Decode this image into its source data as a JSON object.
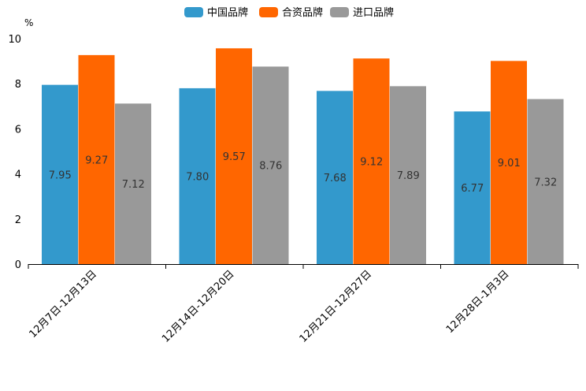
{
  "chart_data": {
    "type": "bar",
    "title": "",
    "xlabel": "",
    "ylabel": "%",
    "ylim": [
      0,
      10
    ],
    "yticks": [
      0,
      2,
      4,
      6,
      8,
      10
    ],
    "grid": false,
    "legend_position": "top-center",
    "categories": [
      "12月7日-12月13日",
      "12月14日-12月20日",
      "12月21日-12月27日",
      "12月28日-1月3日"
    ],
    "series": [
      {
        "name": "中国品牌",
        "color": "#3399CC",
        "values": [
          7.95,
          7.8,
          7.68,
          6.77
        ]
      },
      {
        "name": "合资品牌",
        "color": "#FF6600",
        "values": [
          9.27,
          9.57,
          9.12,
          9.01
        ]
      },
      {
        "name": "进口品牌",
        "color": "#999999",
        "values": [
          7.12,
          8.76,
          7.89,
          7.32
        ]
      }
    ]
  }
}
